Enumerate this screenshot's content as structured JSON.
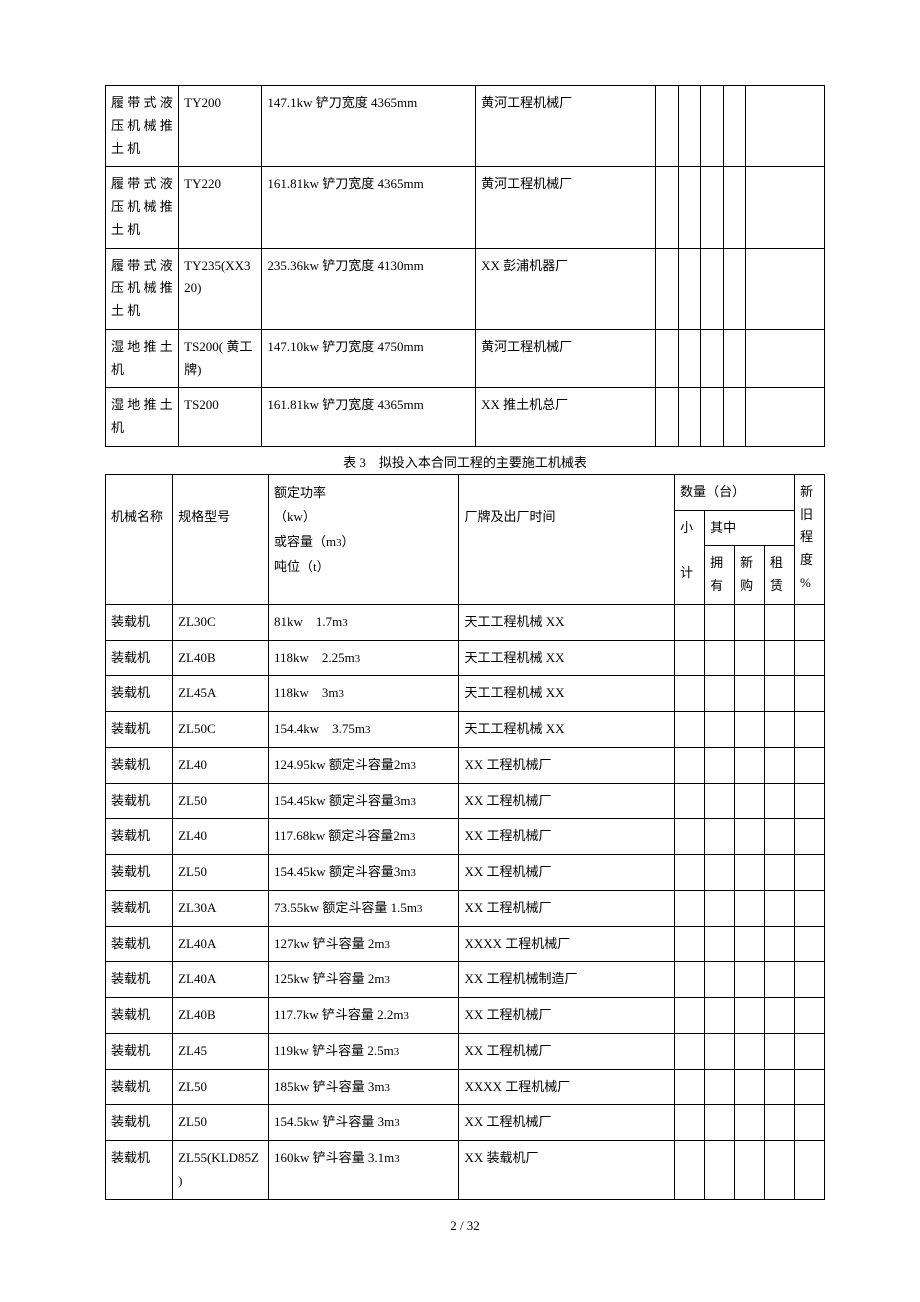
{
  "table1": {
    "rows": [
      {
        "c1": "履带式液压机械推土机",
        "c2": "TY200",
        "c3": "147.1kw 铲刀宽度 4365mm",
        "c4": "黄河工程机械厂",
        "c5": "",
        "c6": "",
        "c7": "",
        "c8": "",
        "c9": ""
      },
      {
        "c1": "履带式液压机械推土机",
        "c2": "TY220",
        "c3": "161.81kw 铲刀宽度 4365mm",
        "c4": "黄河工程机械厂",
        "c5": "",
        "c6": "",
        "c7": "",
        "c8": "",
        "c9": ""
      },
      {
        "c1": "履带式液压机械推土机",
        "c2": "TY235(XX320)",
        "c3": "235.36kw 铲刀宽度 4130mm",
        "c4": "XX 彭浦机器厂",
        "c5": "",
        "c6": "",
        "c7": "",
        "c8": "",
        "c9": ""
      },
      {
        "c1": "湿地推土机",
        "c2": "TS200( 黄工牌)",
        "c3": "147.10kw 铲刀宽度 4750mm",
        "c4": "黄河工程机械厂",
        "c5": "",
        "c6": "",
        "c7": "",
        "c8": "",
        "c9": ""
      },
      {
        "c1": "湿地推土机",
        "c2": "TS200",
        "c3": "161.81kw 铲刀宽度 4365mm",
        "c4": "XX 推土机总厂",
        "c5": "",
        "c6": "",
        "c7": "",
        "c8": "",
        "c9": ""
      }
    ]
  },
  "caption": "表 3　拟投入本合同工程的主要施工机械表",
  "table2": {
    "header": {
      "c1": "机械名称",
      "c2": "规格型号",
      "c3": "额定功率（kw）或容量（m3）吨位（t）",
      "c4": "厂牌及出厂时间",
      "qty": "数量（台）",
      "sub": "小计",
      "inner": "其中",
      "own": "拥有",
      "buy": "新购",
      "rent": "租赁",
      "age": "新旧程度%"
    },
    "rows": [
      {
        "c1": "装载机",
        "c2": "ZL30C",
        "c3": "81kw　1.7m3",
        "c4": "天工工程机械 XX"
      },
      {
        "c1": "装载机",
        "c2": "ZL40B",
        "c3": "118kw　2.25m3",
        "c4": "天工工程机械 XX"
      },
      {
        "c1": "装载机",
        "c2": "ZL45A",
        "c3": "118kw　3m3",
        "c4": "天工工程机械 XX"
      },
      {
        "c1": "装载机",
        "c2": "ZL50C",
        "c3": "154.4kw　3.75m3",
        "c4": "天工工程机械 XX"
      },
      {
        "c1": "装载机",
        "c2": "ZL40",
        "c3": "124.95kw 额定斗容量2m3",
        "c4": "XX 工程机械厂"
      },
      {
        "c1": "装载机",
        "c2": "ZL50",
        "c3": "154.45kw 额定斗容量3m3",
        "c4": "XX 工程机械厂"
      },
      {
        "c1": "装载机",
        "c2": "ZL40",
        "c3": "117.68kw 额定斗容量2m3",
        "c4": "XX 工程机械厂"
      },
      {
        "c1": "装载机",
        "c2": "ZL50",
        "c3": "154.45kw 额定斗容量3m3",
        "c4": "XX 工程机械厂"
      },
      {
        "c1": "装载机",
        "c2": "ZL30A",
        "c3": "73.55kw 额定斗容量 1.5m3",
        "c4": "XX 工程机械厂"
      },
      {
        "c1": "装载机",
        "c2": "ZL40A",
        "c3": "127kw 铲斗容量 2m3",
        "c4": "XXXX 工程机械厂"
      },
      {
        "c1": "装载机",
        "c2": "ZL40A",
        "c3": "125kw 铲斗容量 2m3",
        "c4": "XX 工程机械制造厂"
      },
      {
        "c1": "装载机",
        "c2": "ZL40B",
        "c3": "117.7kw 铲斗容量 2.2m3",
        "c4": "XX 工程机械厂"
      },
      {
        "c1": "装载机",
        "c2": "ZL45",
        "c3": "119kw 铲斗容量 2.5m3",
        "c4": "XX 工程机械厂"
      },
      {
        "c1": "装载机",
        "c2": "ZL50",
        "c3": "185kw 铲斗容量 3m3",
        "c4": "XXXX 工程机械厂"
      },
      {
        "c1": "装载机",
        "c2": "ZL50",
        "c3": "154.5kw 铲斗容量 3m3",
        "c4": "XX 工程机械厂"
      },
      {
        "c1": "装载机",
        "c2": "ZL55(KLD85Z)",
        "c3": "160kw 铲斗容量 3.1m3",
        "c4": "XX 装载机厂"
      }
    ]
  },
  "footer": "2  /  32"
}
